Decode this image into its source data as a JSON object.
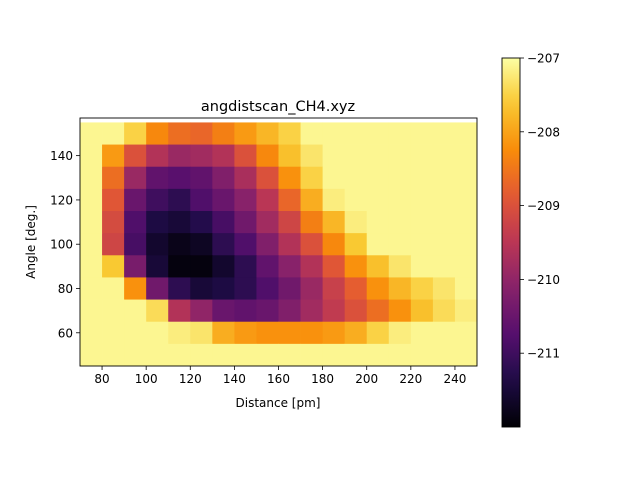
{
  "chart_data": {
    "type": "heatmap",
    "title": "angdistscan_CH4.xyz",
    "xlabel": "Distance [pm]",
    "ylabel": "Angle [deg.]",
    "x_ticks": [
      80,
      100,
      120,
      140,
      160,
      180,
      200,
      220,
      240
    ],
    "y_ticks": [
      60,
      80,
      100,
      120,
      140
    ],
    "xlim": [
      70,
      250
    ],
    "ylim": [
      45,
      157
    ],
    "x_centers": [
      75,
      85,
      95,
      105,
      115,
      125,
      135,
      145,
      155,
      165,
      175,
      185,
      195,
      205,
      215,
      225,
      235,
      245
    ],
    "y_centers": [
      50,
      60,
      70,
      80,
      90,
      100,
      110,
      120,
      130,
      140,
      150
    ],
    "colormap": "inferno",
    "colorbar": {
      "min": -212.0,
      "max": -207.0,
      "ticks": [
        -207,
        -208,
        -209,
        -210,
        -211
      ],
      "tick_labels": [
        "−207",
        "−208",
        "−209",
        "−210",
        "−211"
      ]
    },
    "values_rows_top_to_bottom": [
      [
        -207.1,
        -207.1,
        -207.5,
        -208.3,
        -208.6,
        -208.7,
        -208.4,
        -208.1,
        -207.8,
        -207.5,
        -207.1,
        -207.1,
        -207.1,
        -207.1,
        -207.1,
        -207.1,
        -207.1,
        -207.1
      ],
      [
        -207.1,
        -208.1,
        -209.0,
        -209.6,
        -209.9,
        -209.8,
        -209.6,
        -209.0,
        -208.3,
        -207.7,
        -207.3,
        -207.1,
        -207.1,
        -207.1,
        -207.1,
        -207.1,
        -207.1,
        -207.1
      ],
      [
        -207.1,
        -208.6,
        -209.9,
        -210.6,
        -210.7,
        -210.6,
        -210.2,
        -209.7,
        -209.0,
        -208.2,
        -207.5,
        -207.1,
        -207.1,
        -207.1,
        -207.1,
        -207.1,
        -207.1,
        -207.1
      ],
      [
        -207.1,
        -208.9,
        -210.5,
        -211.0,
        -211.2,
        -210.8,
        -210.5,
        -210.1,
        -209.5,
        -208.7,
        -207.9,
        -207.2,
        -207.1,
        -207.1,
        -207.1,
        -207.1,
        -207.1,
        -207.1
      ],
      [
        -207.1,
        -209.1,
        -210.8,
        -211.4,
        -211.5,
        -211.3,
        -210.9,
        -210.4,
        -209.8,
        -209.2,
        -208.4,
        -207.8,
        -207.2,
        -207.1,
        -207.1,
        -207.1,
        -207.1,
        -207.1
      ],
      [
        -207.1,
        -209.2,
        -210.9,
        -211.6,
        -211.8,
        -211.7,
        -211.2,
        -210.8,
        -210.2,
        -209.6,
        -209.0,
        -208.3,
        -207.6,
        -207.1,
        -207.1,
        -207.1,
        -207.1,
        -207.1
      ],
      [
        -207.1,
        -207.6,
        -210.3,
        -211.5,
        -211.9,
        -211.9,
        -211.6,
        -211.2,
        -210.6,
        -210.1,
        -209.6,
        -208.9,
        -208.2,
        -207.7,
        -207.3,
        -207.1,
        -207.1,
        -207.1
      ],
      [
        -207.1,
        -207.1,
        -208.2,
        -210.4,
        -211.2,
        -211.5,
        -211.4,
        -211.2,
        -210.8,
        -210.4,
        -209.9,
        -209.3,
        -208.8,
        -208.2,
        -207.8,
        -207.5,
        -207.3,
        -207.1
      ],
      [
        -207.1,
        -207.1,
        -207.1,
        -207.4,
        -209.6,
        -210.0,
        -210.5,
        -210.6,
        -210.5,
        -210.2,
        -209.8,
        -209.4,
        -209.0,
        -208.6,
        -208.2,
        -207.7,
        -207.4,
        -207.2
      ],
      [
        -207.1,
        -207.1,
        -207.1,
        -207.1,
        -207.2,
        -207.3,
        -207.9,
        -208.1,
        -208.2,
        -208.2,
        -208.2,
        -208.1,
        -207.9,
        -207.5,
        -207.2,
        -207.1,
        -207.1,
        -207.1
      ],
      [
        -207.1,
        -207.1,
        -207.1,
        -207.1,
        -207.1,
        -207.1,
        -207.1,
        -207.1,
        -207.1,
        -207.1,
        -207.1,
        -207.1,
        -207.1,
        -207.1,
        -207.1,
        -207.1,
        -207.1,
        -207.1
      ]
    ]
  }
}
